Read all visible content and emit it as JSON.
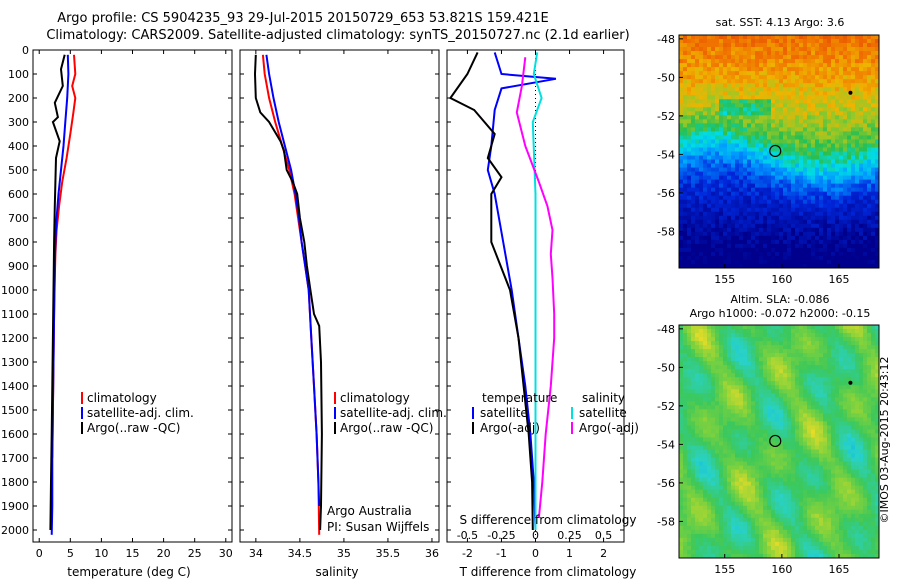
{
  "header": {
    "line1": "Argo profile: CS 5904235_93 29-Jul-2015 20150729_653 53.821S 159.421E",
    "line2": "Climatology: CARS2009. Satellite-adjusted climatology: synTS_20150727.nc (2.1d earlier)"
  },
  "colors": {
    "climatology": "#ff0000",
    "satellite": "#0000ff",
    "argo": "#000000",
    "satellite_s": "#00e0e0",
    "argo_s": "#ff00ff"
  },
  "chart_data": [
    {
      "type": "line",
      "id": "temperature",
      "xlabel": "temperature (deg C)",
      "ylabel": "",
      "xlim": [
        -1,
        31
      ],
      "ylim": [
        2050,
        0
      ],
      "xticks": [
        0,
        5,
        10,
        15,
        20,
        25,
        30
      ],
      "yticks": [
        0,
        100,
        200,
        300,
        400,
        500,
        600,
        700,
        800,
        900,
        1000,
        1100,
        1200,
        1300,
        1400,
        1500,
        1600,
        1700,
        1800,
        1900,
        2000
      ],
      "legend": [
        "climatology",
        "satellite-adj. clim.",
        "Argo(..raw -QC)"
      ],
      "series": [
        {
          "name": "climatology",
          "color": "#ff0000",
          "points": [
            [
              5.6,
              20
            ],
            [
              5.8,
              100
            ],
            [
              5.3,
              150
            ],
            [
              5.8,
              200
            ],
            [
              5.5,
              260
            ],
            [
              5.0,
              350
            ],
            [
              4.4,
              450
            ],
            [
              3.7,
              550
            ],
            [
              3.2,
              650
            ],
            [
              2.8,
              750
            ],
            [
              2.6,
              850
            ],
            [
              2.5,
              950
            ],
            [
              2.4,
              1100
            ],
            [
              2.3,
              1300
            ],
            [
              2.2,
              1500
            ],
            [
              2.1,
              1700
            ]
          ]
        },
        {
          "name": "satellite-adj. clim.",
          "color": "#0000ff",
          "points": [
            [
              4.6,
              20
            ],
            [
              4.7,
              100
            ],
            [
              4.5,
              200
            ],
            [
              4.2,
              300
            ],
            [
              3.9,
              400
            ],
            [
              3.5,
              500
            ],
            [
              3.1,
              600
            ],
            [
              2.8,
              700
            ],
            [
              2.6,
              800
            ],
            [
              2.5,
              900
            ],
            [
              2.4,
              1100
            ],
            [
              2.3,
              1300
            ],
            [
              2.2,
              1500
            ],
            [
              2.1,
              1700
            ],
            [
              2.1,
              1900
            ],
            [
              2.0,
              2020
            ]
          ]
        },
        {
          "name": "Argo(..raw -QC)",
          "color": "#000000",
          "points": [
            [
              4.1,
              20
            ],
            [
              3.5,
              80
            ],
            [
              3.8,
              150
            ],
            [
              2.5,
              220
            ],
            [
              3.0,
              280
            ],
            [
              2.2,
              300
            ],
            [
              3.3,
              380
            ],
            [
              2.7,
              450
            ],
            [
              2.6,
              550
            ],
            [
              2.5,
              650
            ],
            [
              2.4,
              800
            ],
            [
              2.3,
              1000
            ],
            [
              2.2,
              1200
            ],
            [
              2.1,
              1400
            ],
            [
              2.0,
              1600
            ],
            [
              1.9,
              1800
            ],
            [
              1.8,
              2000
            ]
          ]
        }
      ]
    },
    {
      "type": "line",
      "id": "salinity",
      "xlabel": "salinity",
      "ylabel": "",
      "xlim": [
        33.82,
        36.08
      ],
      "ylim": [
        2050,
        0
      ],
      "xticks": [
        34,
        34.5,
        35,
        35.5,
        36
      ],
      "xticklabels": [
        "34",
        "34.5",
        "35",
        "35.5",
        "36"
      ],
      "legend": [
        "climatology",
        "satellite-adj. clim.",
        "Argo(..raw -QC)"
      ],
      "annotations": [
        "Argo Australia",
        "PI: Susan Wijffels"
      ],
      "series": [
        {
          "name": "climatology",
          "color": "#ff0000",
          "points": [
            [
              34.08,
              20
            ],
            [
              34.1,
              100
            ],
            [
              34.15,
              200
            ],
            [
              34.22,
              300
            ],
            [
              34.3,
              400
            ],
            [
              34.38,
              500
            ],
            [
              34.44,
              600
            ],
            [
              34.48,
              700
            ],
            [
              34.52,
              800
            ],
            [
              34.56,
              900
            ],
            [
              34.6,
              1000
            ],
            [
              34.63,
              1200
            ],
            [
              34.66,
              1400
            ],
            [
              34.69,
              1600
            ],
            [
              34.71,
              1800
            ],
            [
              34.72,
              2020
            ]
          ]
        },
        {
          "name": "satellite-adj. clim.",
          "color": "#0000ff",
          "points": [
            [
              34.12,
              20
            ],
            [
              34.15,
              100
            ],
            [
              34.2,
              200
            ],
            [
              34.26,
              300
            ],
            [
              34.33,
              400
            ],
            [
              34.4,
              500
            ],
            [
              34.45,
              600
            ],
            [
              34.49,
              700
            ],
            [
              34.52,
              800
            ],
            [
              34.56,
              900
            ],
            [
              34.6,
              1000
            ],
            [
              34.63,
              1200
            ],
            [
              34.66,
              1400
            ],
            [
              34.69,
              1600
            ],
            [
              34.71,
              1800
            ],
            [
              34.72,
              1900
            ]
          ]
        },
        {
          "name": "Argo(..raw -QC)",
          "color": "#000000",
          "points": [
            [
              34.0,
              20
            ],
            [
              33.99,
              100
            ],
            [
              34.0,
              200
            ],
            [
              34.05,
              260
            ],
            [
              34.15,
              300
            ],
            [
              34.28,
              380
            ],
            [
              34.32,
              420
            ],
            [
              34.35,
              500
            ],
            [
              34.42,
              550
            ],
            [
              34.47,
              600
            ],
            [
              34.5,
              700
            ],
            [
              34.55,
              800
            ],
            [
              34.58,
              900
            ],
            [
              34.62,
              1000
            ],
            [
              34.66,
              1100
            ],
            [
              34.72,
              1150
            ],
            [
              34.74,
              1300
            ],
            [
              34.75,
              1600
            ],
            [
              34.74,
              1900
            ],
            [
              34.73,
              2000
            ]
          ]
        }
      ]
    },
    {
      "type": "line",
      "id": "difference",
      "xlabel": "T difference from climatology",
      "x2label": "S difference from climatology",
      "xlim": [
        -2.6,
        2.6
      ],
      "ylim": [
        2050,
        0
      ],
      "xticks": [
        -2,
        -1,
        0,
        1,
        2
      ],
      "x2ticks": [
        -0.5,
        -0.25,
        0,
        0.25,
        0.5
      ],
      "x2ticklabels": [
        "-0.5",
        "-0.25",
        "0",
        "0.25",
        "0.5"
      ],
      "legend": {
        "temperature": [
          "satellite",
          "Argo(-adj)"
        ],
        "salinity": [
          "satellite",
          "Argo(-adj)"
        ]
      },
      "legend_titles": [
        "temperature",
        "salinity"
      ],
      "series": [
        {
          "name": "temperature satellite",
          "color": "#0000ff",
          "points": [
            [
              -1.2,
              10
            ],
            [
              -1.0,
              100
            ],
            [
              0.6,
              120
            ],
            [
              -1.0,
              160
            ],
            [
              -1.2,
              250
            ],
            [
              -1.3,
              400
            ],
            [
              -1.4,
              500
            ],
            [
              -1.2,
              600
            ],
            [
              -0.95,
              800
            ],
            [
              -0.7,
              1000
            ],
            [
              -0.5,
              1200
            ],
            [
              -0.3,
              1400
            ],
            [
              -0.15,
              1600
            ],
            [
              -0.05,
              1800
            ],
            [
              0.0,
              2000
            ]
          ]
        },
        {
          "name": "temperature Argo(-adj)",
          "color": "#000000",
          "points": [
            [
              -1.7,
              10
            ],
            [
              -2.0,
              100
            ],
            [
              -2.5,
              200
            ],
            [
              -1.8,
              250
            ],
            [
              -1.2,
              350
            ],
            [
              -1.4,
              450
            ],
            [
              -1.0,
              530
            ],
            [
              -1.3,
              600
            ],
            [
              -1.3,
              800
            ],
            [
              -0.75,
              1000
            ],
            [
              -0.5,
              1200
            ],
            [
              -0.35,
              1400
            ],
            [
              -0.2,
              1600
            ],
            [
              -0.1,
              1800
            ],
            [
              -0.08,
              2000
            ]
          ]
        },
        {
          "name": "salinity satellite",
          "color": "#00e0e0",
          "points": [
            [
              0.05,
              10
            ],
            [
              -0.05,
              100
            ],
            [
              0.18,
              200
            ],
            [
              -0.08,
              300
            ],
            [
              0.0,
              600
            ],
            [
              0.0,
              1000
            ],
            [
              0.0,
              1500
            ],
            [
              0.0,
              2000
            ]
          ]
        },
        {
          "name": "salinity Argo(-adj)",
          "color": "#ff00ff",
          "points": [
            [
              -0.3,
              30
            ],
            [
              -0.4,
              150
            ],
            [
              -0.55,
              260
            ],
            [
              -0.3,
              400
            ],
            [
              0.1,
              550
            ],
            [
              0.35,
              650
            ],
            [
              0.5,
              750
            ],
            [
              0.45,
              850
            ],
            [
              0.5,
              950
            ],
            [
              0.55,
              1100
            ],
            [
              0.55,
              1200
            ],
            [
              0.45,
              1400
            ],
            [
              0.3,
              1600
            ],
            [
              0.2,
              1800
            ],
            [
              0.1,
              1950
            ]
          ]
        }
      ]
    },
    {
      "type": "heatmap",
      "id": "sst_map",
      "title": "sat. SST: 4.13 Argo: 3.6",
      "xlim": [
        151,
        168.5
      ],
      "ylim": [
        -59.9,
        -47.8
      ],
      "xticks": [
        155,
        160,
        165
      ],
      "yticks": [
        -48,
        -50,
        -52,
        -54,
        -56,
        -58
      ],
      "marker": {
        "lon": 159.421,
        "lat": -53.821
      }
    },
    {
      "type": "heatmap",
      "id": "sla_map",
      "title": "Altim. SLA: -0.086",
      "subtitle": "Argo h1000: -0.072 h2000: -0.15",
      "xlim": [
        151,
        168.5
      ],
      "ylim": [
        -59.9,
        -47.8
      ],
      "xticks": [
        155,
        160,
        165
      ],
      "yticks": [
        -48,
        -50,
        -52,
        -54,
        -56,
        -58
      ],
      "marker": {
        "lon": 159.421,
        "lat": -53.821
      }
    }
  ],
  "credit": "©IMOS 03-Aug-2015 20:43:12"
}
